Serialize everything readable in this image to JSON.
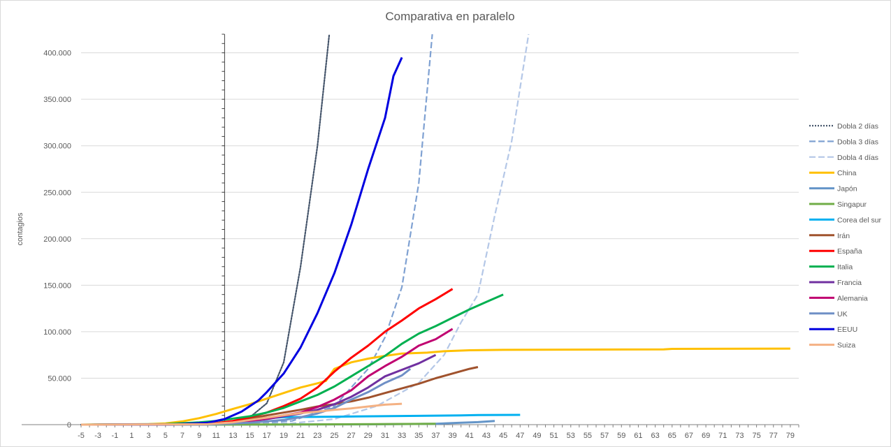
{
  "chart_data": {
    "type": "line",
    "title": "Comparativa en paralelo",
    "ylabel": "contagios",
    "xlabel": "",
    "xlim": [
      -5,
      80
    ],
    "ylim": [
      0,
      420000
    ],
    "yticks": [
      0,
      50000,
      100000,
      150000,
      200000,
      250000,
      300000,
      350000,
      400000
    ],
    "ytick_labels": [
      "0",
      "50.000",
      "100.000",
      "150.000",
      "200.000",
      "250.000",
      "300.000",
      "350.000",
      "400.000"
    ],
    "xticks": [
      -5,
      -3,
      -1,
      1,
      3,
      5,
      7,
      9,
      11,
      13,
      15,
      17,
      19,
      21,
      23,
      25,
      27,
      29,
      31,
      33,
      35,
      37,
      39,
      41,
      43,
      45,
      47,
      49,
      51,
      53,
      55,
      57,
      59,
      61,
      63,
      65,
      67,
      69,
      71,
      73,
      75,
      77,
      79
    ],
    "grid": true,
    "legend_position": "right",
    "series": [
      {
        "name": "Dobla 2 días",
        "color": "#44546a",
        "dash": "dotted",
        "points": [
          [
            -5,
            0
          ],
          [
            5,
            150
          ],
          [
            9,
            600
          ],
          [
            11,
            1100
          ],
          [
            13,
            3700
          ],
          [
            15,
            8000
          ],
          [
            17,
            23000
          ],
          [
            19,
            67000
          ],
          [
            21,
            170000
          ],
          [
            23,
            300000
          ],
          [
            24.4,
            420000
          ]
        ]
      },
      {
        "name": "Dobla 3 días",
        "color": "#7fa1d2",
        "dash": "dashed",
        "points": [
          [
            -5,
            0
          ],
          [
            10,
            300
          ],
          [
            15,
            1000
          ],
          [
            20,
            4000
          ],
          [
            25,
            20000
          ],
          [
            29,
            60000
          ],
          [
            31,
            94000
          ],
          [
            33,
            148000
          ],
          [
            35,
            260000
          ],
          [
            36.6,
            420000
          ]
        ]
      },
      {
        "name": "Dobla 4 días",
        "color": "#b4c7e7",
        "dash": "dashed",
        "points": [
          [
            -5,
            0
          ],
          [
            10,
            150
          ],
          [
            20,
            1500
          ],
          [
            25,
            6000
          ],
          [
            30,
            20000
          ],
          [
            35,
            45000
          ],
          [
            38,
            75000
          ],
          [
            40,
            110000
          ],
          [
            42,
            140000
          ],
          [
            44,
            225000
          ],
          [
            46,
            305000
          ],
          [
            48,
            420000
          ]
        ]
      },
      {
        "name": "China",
        "color": "#ffc000",
        "dash": "solid",
        "points": [
          [
            -5,
            0
          ],
          [
            3,
            600
          ],
          [
            5,
            1300
          ],
          [
            7,
            3500
          ],
          [
            9,
            7000
          ],
          [
            11,
            11500
          ],
          [
            13,
            17000
          ],
          [
            15,
            22000
          ],
          [
            17,
            28000
          ],
          [
            19,
            34000
          ],
          [
            21,
            40000
          ],
          [
            23,
            44500
          ],
          [
            24,
            47000
          ],
          [
            25,
            60000
          ],
          [
            27,
            67000
          ],
          [
            29,
            71000
          ],
          [
            31,
            74000
          ],
          [
            33,
            76500
          ],
          [
            36,
            77500
          ],
          [
            38,
            79000
          ],
          [
            41,
            80000
          ],
          [
            45,
            80500
          ],
          [
            64,
            81000
          ],
          [
            65,
            81500
          ],
          [
            79,
            81800
          ]
        ]
      },
      {
        "name": "Japón",
        "color": "#6495c8",
        "dash": "solid",
        "points": [
          [
            -5,
            0
          ],
          [
            20,
            150
          ],
          [
            30,
            400
          ],
          [
            37,
            1000
          ],
          [
            40,
            2000
          ],
          [
            42,
            2700
          ],
          [
            44,
            4000
          ]
        ]
      },
      {
        "name": "Singapur",
        "color": "#70ad47",
        "dash": "solid",
        "points": [
          [
            -5,
            0
          ],
          [
            20,
            200
          ],
          [
            30,
            500
          ],
          [
            37,
            1000
          ]
        ]
      },
      {
        "name": "Corea del sur",
        "color": "#00b0f0",
        "dash": "solid",
        "points": [
          [
            -5,
            0
          ],
          [
            10,
            300
          ],
          [
            13,
            2000
          ],
          [
            15,
            5000
          ],
          [
            17,
            7000
          ],
          [
            19,
            8100
          ],
          [
            25,
            8600
          ],
          [
            35,
            9500
          ],
          [
            40,
            10000
          ],
          [
            42,
            10300
          ],
          [
            47,
            10500
          ]
        ]
      },
      {
        "name": "Irán",
        "color": "#a0522d",
        "dash": "solid",
        "points": [
          [
            -5,
            0
          ],
          [
            10,
            500
          ],
          [
            13,
            3500
          ],
          [
            15,
            6500
          ],
          [
            17,
            10000
          ],
          [
            19,
            13000
          ],
          [
            21,
            16000
          ],
          [
            23,
            19500
          ],
          [
            25,
            22000
          ],
          [
            27,
            25000
          ],
          [
            29,
            29000
          ],
          [
            31,
            34000
          ],
          [
            33,
            39000
          ],
          [
            35,
            44000
          ],
          [
            37,
            50000
          ],
          [
            39,
            55000
          ],
          [
            41,
            60000
          ],
          [
            42,
            62000
          ]
        ]
      },
      {
        "name": "España",
        "color": "#ff0000",
        "dash": "solid",
        "points": [
          [
            -5,
            0
          ],
          [
            10,
            500
          ],
          [
            13,
            4000
          ],
          [
            15,
            8000
          ],
          [
            17,
            13000
          ],
          [
            19,
            20000
          ],
          [
            21,
            28000
          ],
          [
            23,
            40000
          ],
          [
            25,
            57000
          ],
          [
            27,
            72000
          ],
          [
            29,
            85000
          ],
          [
            31,
            100000
          ],
          [
            33,
            112000
          ],
          [
            35,
            125000
          ],
          [
            37,
            135000
          ],
          [
            39,
            146000
          ]
        ]
      },
      {
        "name": "Italia",
        "color": "#00b050",
        "dash": "solid",
        "points": [
          [
            -5,
            0
          ],
          [
            5,
            600
          ],
          [
            9,
            2500
          ],
          [
            11,
            4000
          ],
          [
            13,
            6500
          ],
          [
            15,
            9000
          ],
          [
            17,
            13000
          ],
          [
            19,
            18000
          ],
          [
            21,
            25000
          ],
          [
            23,
            32000
          ],
          [
            25,
            41000
          ],
          [
            27,
            52000
          ],
          [
            29,
            63000
          ],
          [
            31,
            74000
          ],
          [
            33,
            87000
          ],
          [
            35,
            98000
          ],
          [
            37,
            106000
          ],
          [
            39,
            115000
          ],
          [
            41,
            124000
          ],
          [
            43,
            132000
          ],
          [
            45,
            140000
          ]
        ]
      },
      {
        "name": "Francia",
        "color": "#7030a0",
        "dash": "solid",
        "points": [
          [
            -5,
            0
          ],
          [
            10,
            500
          ],
          [
            13,
            2000
          ],
          [
            15,
            4000
          ],
          [
            17,
            6000
          ],
          [
            19,
            9000
          ],
          [
            21,
            12000
          ],
          [
            23,
            16000
          ],
          [
            25,
            22000
          ],
          [
            27,
            30000
          ],
          [
            29,
            40000
          ],
          [
            31,
            52000
          ],
          [
            33,
            59000
          ],
          [
            35,
            66000
          ],
          [
            37,
            75000
          ]
        ]
      },
      {
        "name": "Alemania",
        "color": "#c00070",
        "dash": "solid",
        "points": [
          [
            -5,
            0
          ],
          [
            10,
            300
          ],
          [
            13,
            2000
          ],
          [
            15,
            4000
          ],
          [
            17,
            6500
          ],
          [
            19,
            10000
          ],
          [
            21,
            13000
          ],
          [
            23,
            19000
          ],
          [
            25,
            27000
          ],
          [
            27,
            37000
          ],
          [
            29,
            52000
          ],
          [
            31,
            63000
          ],
          [
            33,
            73000
          ],
          [
            35,
            85000
          ],
          [
            37,
            92000
          ],
          [
            39,
            103000
          ]
        ]
      },
      {
        "name": "UK",
        "color": "#6f8fc6",
        "dash": "solid",
        "points": [
          [
            -5,
            0
          ],
          [
            10,
            200
          ],
          [
            15,
            2000
          ],
          [
            17,
            3500
          ],
          [
            19,
            5000
          ],
          [
            21,
            8000
          ],
          [
            23,
            12000
          ],
          [
            25,
            18000
          ],
          [
            27,
            27000
          ],
          [
            29,
            35000
          ],
          [
            31,
            45000
          ],
          [
            33,
            53000
          ],
          [
            34,
            60000
          ]
        ]
      },
      {
        "name": "EEUU",
        "color": "#0000e0",
        "dash": "solid",
        "points": [
          [
            -5,
            0
          ],
          [
            6,
            300
          ],
          [
            10,
            2000
          ],
          [
            12,
            6000
          ],
          [
            14,
            14000
          ],
          [
            16,
            26000
          ],
          [
            17,
            35000
          ],
          [
            19,
            55000
          ],
          [
            21,
            83000
          ],
          [
            23,
            120000
          ],
          [
            25,
            163000
          ],
          [
            27,
            215000
          ],
          [
            29,
            275000
          ],
          [
            31,
            330000
          ],
          [
            32,
            375000
          ],
          [
            33,
            395000
          ]
        ]
      },
      {
        "name": "Suiza",
        "color": "#f4b183",
        "dash": "solid",
        "points": [
          [
            -5,
            0
          ],
          [
            10,
            500
          ],
          [
            13,
            2500
          ],
          [
            15,
            5000
          ],
          [
            17,
            7500
          ],
          [
            19,
            10000
          ],
          [
            21,
            12500
          ],
          [
            23,
            14000
          ],
          [
            25,
            16000
          ],
          [
            27,
            17500
          ],
          [
            29,
            19500
          ],
          [
            31,
            21500
          ],
          [
            33,
            22500
          ]
        ]
      }
    ]
  }
}
